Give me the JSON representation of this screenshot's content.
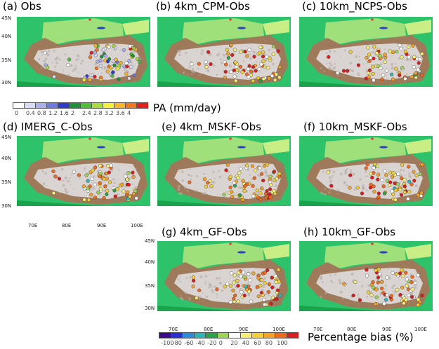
{
  "panels": [
    {
      "id": "a",
      "title": "(a) Obs",
      "kind": "pa"
    },
    {
      "id": "b",
      "title": "(b) 4km_CPM-Obs",
      "kind": "bias"
    },
    {
      "id": "c",
      "title": "(c) 10km_NCPS-Obs",
      "kind": "bias"
    },
    {
      "id": "d",
      "title": "(d) IMERG_C-Obs",
      "kind": "bias"
    },
    {
      "id": "e",
      "title": "(e) 4km_MSKF-Obs",
      "kind": "bias"
    },
    {
      "id": "f",
      "title": "(f) 10km_MSKF-Obs",
      "kind": "bias"
    },
    {
      "id": "g",
      "title": "(g) 4km_GF-Obs",
      "kind": "bias"
    },
    {
      "id": "h",
      "title": "(h) 10km_GF-Obs",
      "kind": "bias"
    }
  ],
  "axes": {
    "lat_labels": [
      "45N",
      "40N",
      "35N",
      "30N"
    ],
    "lon_labels": [
      "70E",
      "80E",
      "90E",
      "100E"
    ]
  },
  "legend_pa": {
    "title": "PA (mm/day)",
    "ticks": [
      "0",
      "0.4",
      "0.8",
      "1.2",
      "1.6",
      "2",
      "2.4",
      "2.8",
      "3.2",
      "3.6",
      "4"
    ],
    "colors": [
      "#ffffff",
      "#d8dcf6",
      "#aab0ee",
      "#6f7ae0",
      "#2d3ccf",
      "#1f8f3a",
      "#4fbf3a",
      "#a8dc3a",
      "#f3f03a",
      "#f7b52a",
      "#f0781e",
      "#e0201e"
    ]
  },
  "legend_bias": {
    "title": "Percentage bias (%)",
    "ticks": [
      "-100",
      "-80",
      "-60",
      "-40",
      "-20",
      "0",
      "20",
      "40",
      "60",
      "80",
      "100"
    ],
    "colors": [
      "#3c0a8c",
      "#2b2fd0",
      "#2f8ad8",
      "#2fb4b4",
      "#2fa04a",
      "#9fd45a",
      "#ffffff",
      "#f6f07a",
      "#f2cf3a",
      "#f2a22a",
      "#ee6a1e",
      "#d81e1e"
    ]
  }
}
